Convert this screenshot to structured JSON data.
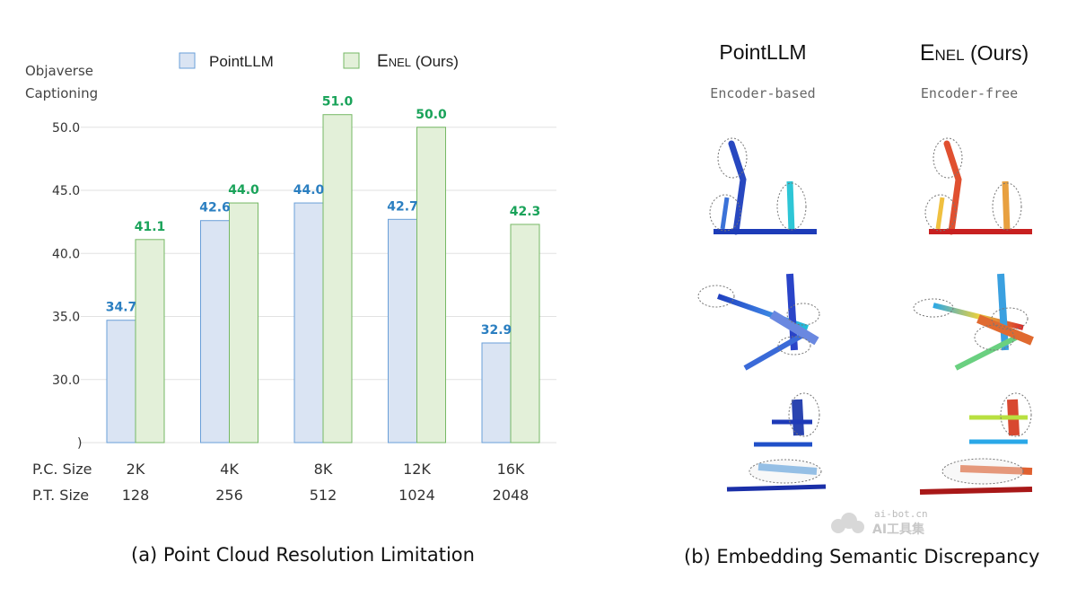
{
  "chart_data": {
    "type": "bar",
    "ylabel": "Objaverse\nCaptioning",
    "ylim": [
      25,
      52
    ],
    "y_ticks": [
      "30.0",
      "35.0",
      "40.0",
      "45.0",
      "50.0"
    ],
    "y_tick_values": [
      30,
      35,
      40,
      45,
      50
    ],
    "axis_break_mark": ")",
    "categories": [
      "2K",
      "4K",
      "8K",
      "12K",
      "16K"
    ],
    "row_labels": [
      "P.C. Size",
      "P.T. Size"
    ],
    "categories_row2": [
      "128",
      "256",
      "512",
      "1024",
      "2048"
    ],
    "series": [
      {
        "name": "PointLLM",
        "values": [
          34.7,
          42.6,
          44.0,
          42.7,
          32.9
        ],
        "labels": [
          "34.7",
          "42.6",
          "44.0",
          "42.7",
          "32.9"
        ],
        "fill": "#dae4f3",
        "stroke": "#6a9fd8",
        "label_color": "#2b7fc1"
      },
      {
        "name_main": "E",
        "name_small": "NEL",
        "name_suffix": " (Ours)",
        "values": [
          41.1,
          44.0,
          51.0,
          50.0,
          42.3
        ],
        "labels": [
          "41.1",
          "44.0",
          "51.0",
          "50.0",
          "42.3"
        ],
        "fill": "#e3f0d9",
        "stroke": "#76b865",
        "label_color": "#1aa35a"
      }
    ],
    "grid": true,
    "legend_position": "top"
  },
  "captions": {
    "left": "(a) Point Cloud Resolution Limitation",
    "right": "(b) Embedding Semantic Discrepancy"
  },
  "right_panel": {
    "col1_title": "PointLLM",
    "col1_sub": "Encoder-based",
    "col2_title_main": "E",
    "col2_title_small": "NEL",
    "col2_title_suffix": " (Ours)",
    "col2_sub": "Encoder-free"
  },
  "watermark": {
    "line1": "ai-bot.cn",
    "line2": "AI工具集"
  }
}
